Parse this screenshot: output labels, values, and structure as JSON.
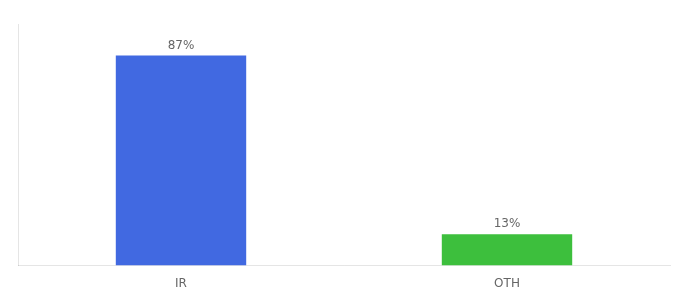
{
  "chart_data": {
    "type": "bar",
    "categories": [
      "IR",
      "OTH"
    ],
    "values": [
      87,
      13
    ],
    "colors": [
      "#4169e1",
      "#3dbf3d"
    ],
    "ylim": [
      0,
      100
    ],
    "yticks": [],
    "grid": false,
    "tick_labels": "x",
    "data_labels": true,
    "value_labels": [
      "87%",
      "13%"
    ]
  }
}
